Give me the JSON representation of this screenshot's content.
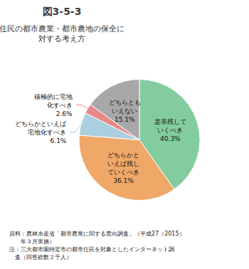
{
  "chart_data": {
    "type": "pie",
    "title": "図3-5-3",
    "subtitle": "住民の都市農業・都市農地の保全に\n対する考え方",
    "categories": [
      "是非残して\nいくべき",
      "どちらかと\nいえば残し\nていくべき",
      "どちらかといえば\n宅地化すべき",
      "積極的に宅地\n化すべき",
      "どちらとも\nいえない"
    ],
    "values": [
      40.3,
      36.1,
      6.1,
      2.6,
      15.1
    ],
    "value_labels": [
      "40.3%",
      "36.1%",
      "6.1%",
      "2.6%",
      "15.1%"
    ],
    "colors": [
      "#82cca0",
      "#f0a868",
      "#aacfe0",
      "#e88888",
      "#a8a8a8"
    ],
    "data_labels": true,
    "footnote": [
      "資料：農林水産省「都市農業に関する意向調査」（平成27（2015）",
      "　　年３月実施）",
      "注：三大都市圏特定市の都市住民を対象としたインターネット調",
      "　査（回答総数２千人）"
    ]
  }
}
